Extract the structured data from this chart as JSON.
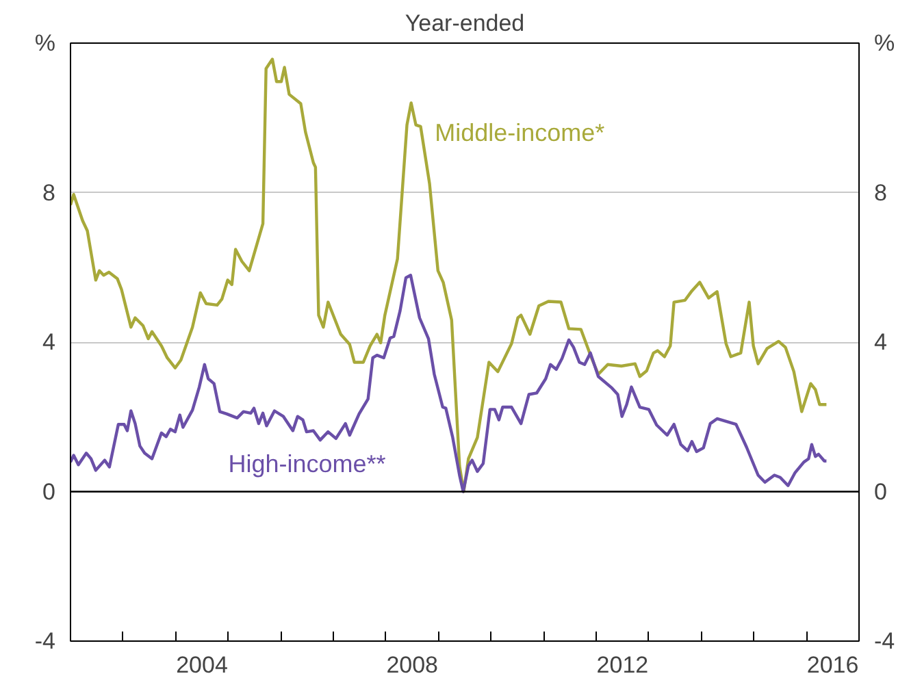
{
  "chart_data": {
    "type": "line",
    "subtitle": "Year-ended",
    "xlim": [
      2002,
      2017
    ],
    "xticks": [
      {
        "value": 2003,
        "label": null
      },
      {
        "value": 2004,
        "label": null
      },
      {
        "value": 2004.5,
        "label": "2004"
      },
      {
        "value": 2005,
        "label": null
      },
      {
        "value": 2006,
        "label": null
      },
      {
        "value": 2007,
        "label": null
      },
      {
        "value": 2008,
        "label": null
      },
      {
        "value": 2008.5,
        "label": "2008"
      },
      {
        "value": 2009,
        "label": null
      },
      {
        "value": 2010,
        "label": null
      },
      {
        "value": 2011,
        "label": null
      },
      {
        "value": 2012,
        "label": null
      },
      {
        "value": 2012.5,
        "label": "2012"
      },
      {
        "value": 2013,
        "label": null
      },
      {
        "value": 2014,
        "label": null
      },
      {
        "value": 2015,
        "label": null
      },
      {
        "value": 2016,
        "label": null
      },
      {
        "value": 2016.5,
        "label": "2016"
      }
    ],
    "ylim": [
      -4,
      12
    ],
    "yticks": [
      -4,
      0,
      4,
      8,
      {
        "value": 12,
        "label": "%"
      }
    ],
    "y2lim": [
      -4,
      12
    ],
    "y2ticks": [
      -4,
      0,
      4,
      8,
      {
        "value": 12,
        "label": "%"
      }
    ],
    "grid": "y",
    "legend": false,
    "line_style": "solid",
    "ref_lines": [
      {
        "axis": "y",
        "value": 0,
        "label": null,
        "color": "#000000"
      }
    ],
    "series": [
      {
        "name": "Middle-income*",
        "color": "#a8a93a",
        "x": [
          2002.0,
          2002.06,
          2002.23,
          2002.32,
          2002.48,
          2002.55,
          2002.63,
          2002.73,
          2002.89,
          2002.97,
          2003.15,
          2003.23,
          2003.38,
          2003.48,
          2003.55,
          2003.73,
          2003.84,
          2003.99,
          2004.1,
          2004.32,
          2004.47,
          2004.58,
          2004.79,
          2004.88,
          2004.99,
          2005.07,
          2005.14,
          2005.26,
          2005.4,
          2005.66,
          2005.72,
          2005.84,
          2005.92,
          2006.01,
          2006.07,
          2006.16,
          2006.38,
          2006.47,
          2006.62,
          2006.66,
          2006.72,
          2006.81,
          2006.9,
          2007.14,
          2007.31,
          2007.4,
          2007.57,
          2007.7,
          2007.83,
          2007.9,
          2007.98,
          2008.22,
          2008.4,
          2008.48,
          2008.57,
          2008.66,
          2008.83,
          2008.99,
          2009.09,
          2009.25,
          2009.4,
          2009.48,
          2009.57,
          2009.74,
          2009.96,
          2010.13,
          2010.39,
          2010.51,
          2010.57,
          2010.74,
          2010.91,
          2011.09,
          2011.33,
          2011.48,
          2011.71,
          2011.91,
          2012.04,
          2012.22,
          2012.48,
          2012.74,
          2012.83,
          2012.96,
          2013.09,
          2013.17,
          2013.3,
          2013.41,
          2013.48,
          2013.69,
          2013.82,
          2013.97,
          2014.14,
          2014.3,
          2014.47,
          2014.56,
          2014.75,
          2014.91,
          2014.99,
          2015.08,
          2015.25,
          2015.47,
          2015.6,
          2015.76,
          2015.91,
          2016.08,
          2016.17,
          2016.25,
          2016.38
        ],
        "values": [
          7.67,
          7.95,
          7.25,
          6.98,
          5.66,
          5.91,
          5.79,
          5.87,
          5.7,
          5.41,
          4.4,
          4.65,
          4.44,
          4.09,
          4.28,
          3.9,
          3.58,
          3.31,
          3.52,
          4.4,
          5.32,
          5.03,
          4.99,
          5.15,
          5.66,
          5.54,
          6.48,
          6.16,
          5.91,
          7.17,
          11.32,
          11.57,
          10.97,
          10.97,
          11.35,
          10.63,
          10.38,
          9.62,
          8.8,
          8.68,
          4.72,
          4.4,
          5.07,
          4.21,
          3.94,
          3.46,
          3.46,
          3.9,
          4.21,
          3.98,
          4.72,
          6.23,
          9.81,
          10.4,
          9.81,
          9.77,
          8.24,
          5.91,
          5.6,
          4.59,
          0.69,
          0.0,
          0.88,
          1.45,
          3.46,
          3.21,
          3.96,
          4.65,
          4.72,
          4.21,
          4.97,
          5.09,
          5.07,
          4.36,
          4.34,
          3.58,
          3.14,
          3.4,
          3.36,
          3.42,
          3.08,
          3.23,
          3.71,
          3.77,
          3.61,
          3.9,
          5.07,
          5.12,
          5.37,
          5.6,
          5.18,
          5.35,
          3.96,
          3.61,
          3.71,
          5.07,
          3.9,
          3.42,
          3.83,
          4.02,
          3.86,
          3.21,
          2.14,
          2.89,
          2.73,
          2.33,
          2.33
        ]
      },
      {
        "name": "High-income**",
        "color": "#6a4fa8",
        "x": [
          2002.0,
          2002.06,
          2002.15,
          2002.3,
          2002.39,
          2002.48,
          2002.65,
          2002.74,
          2002.91,
          2003.02,
          2003.08,
          2003.15,
          2003.23,
          2003.32,
          2003.41,
          2003.55,
          2003.73,
          2003.82,
          2003.9,
          2003.99,
          2004.08,
          2004.14,
          2004.32,
          2004.45,
          2004.55,
          2004.62,
          2004.73,
          2004.84,
          2004.97,
          2005.17,
          2005.29,
          2005.43,
          2005.49,
          2005.58,
          2005.66,
          2005.73,
          2005.88,
          2006.05,
          2006.23,
          2006.32,
          2006.42,
          2006.49,
          2006.62,
          2006.75,
          2006.9,
          2007.05,
          2007.23,
          2007.31,
          2007.49,
          2007.66,
          2007.75,
          2007.83,
          2007.96,
          2008.08,
          2008.15,
          2008.27,
          2008.38,
          2008.47,
          2008.64,
          2008.81,
          2008.92,
          2009.08,
          2009.14,
          2009.27,
          2009.4,
          2009.47,
          2009.57,
          2009.64,
          2009.74,
          2009.85,
          2009.98,
          2010.07,
          2010.15,
          2010.22,
          2010.39,
          2010.57,
          2010.72,
          2010.87,
          2011.04,
          2011.13,
          2011.24,
          2011.35,
          2011.48,
          2011.57,
          2011.68,
          2011.78,
          2011.89,
          2012.04,
          2012.3,
          2012.41,
          2012.49,
          2012.58,
          2012.67,
          2012.83,
          2013.0,
          2013.15,
          2013.35,
          2013.48,
          2013.61,
          2013.74,
          2013.82,
          2013.91,
          2014.04,
          2014.17,
          2014.3,
          2014.66,
          2014.86,
          2015.08,
          2015.21,
          2015.39,
          2015.5,
          2015.65,
          2015.78,
          2015.95,
          2016.04,
          2016.1,
          2016.17,
          2016.23,
          2016.34,
          2016.38
        ],
        "values": [
          0.79,
          0.97,
          0.72,
          1.03,
          0.88,
          0.57,
          0.84,
          0.66,
          1.8,
          1.8,
          1.63,
          2.16,
          1.82,
          1.22,
          1.03,
          0.88,
          1.57,
          1.47,
          1.67,
          1.6,
          2.05,
          1.72,
          2.18,
          2.8,
          3.4,
          3.02,
          2.89,
          2.14,
          2.08,
          1.97,
          2.14,
          2.1,
          2.23,
          1.82,
          2.1,
          1.76,
          2.16,
          2.01,
          1.63,
          2.01,
          1.92,
          1.6,
          1.63,
          1.38,
          1.6,
          1.42,
          1.82,
          1.51,
          2.08,
          2.48,
          3.58,
          3.65,
          3.58,
          4.11,
          4.15,
          4.84,
          5.72,
          5.79,
          4.65,
          4.09,
          3.14,
          2.26,
          2.23,
          1.45,
          0.44,
          0.0,
          0.69,
          0.84,
          0.54,
          0.75,
          2.2,
          2.2,
          1.92,
          2.26,
          2.26,
          1.82,
          2.6,
          2.64,
          3.02,
          3.4,
          3.27,
          3.56,
          4.06,
          3.86,
          3.46,
          3.4,
          3.71,
          3.08,
          2.77,
          2.6,
          2.01,
          2.33,
          2.8,
          2.26,
          2.2,
          1.78,
          1.51,
          1.8,
          1.26,
          1.09,
          1.34,
          1.07,
          1.17,
          1.82,
          1.95,
          1.8,
          1.19,
          0.44,
          0.25,
          0.44,
          0.38,
          0.16,
          0.5,
          0.79,
          0.88,
          1.26,
          0.94,
          1.0,
          0.82,
          0.82
        ]
      }
    ]
  }
}
